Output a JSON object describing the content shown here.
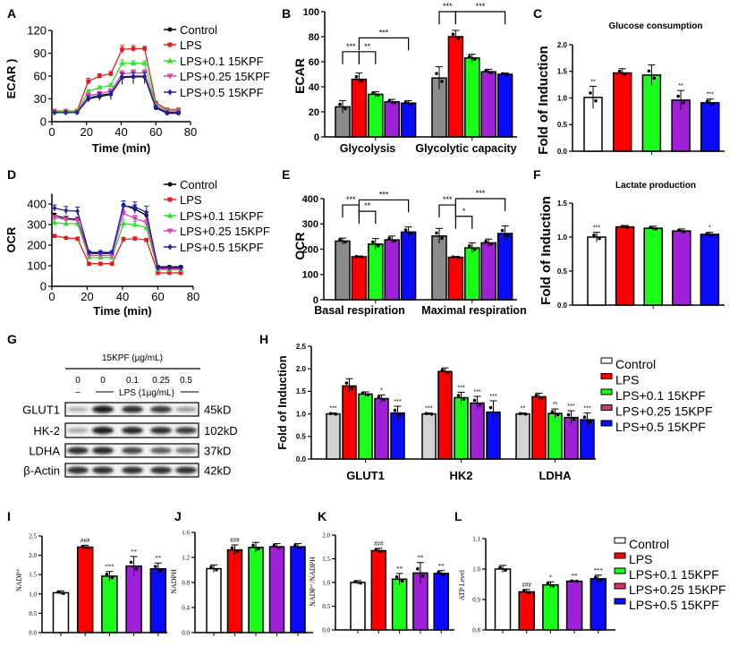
{
  "chart_data": [
    {
      "panel": "A",
      "type": "line",
      "xlabel": "Time (min)",
      "ylabel": "ECAR )",
      "xlim": [
        0,
        80
      ],
      "ylim": [
        0,
        120
      ],
      "xticks": [
        "0",
        "20",
        "40",
        "60",
        "80"
      ],
      "yticks": [
        "0",
        "30",
        "60",
        "90",
        "120"
      ],
      "x": [
        1.5,
        8,
        14.5,
        21,
        27.5,
        34,
        40.5,
        47,
        53.5,
        60,
        66.5,
        73
      ],
      "legend": "right",
      "series": [
        {
          "name": "Control",
          "color": "#000000",
          "marker": "circle",
          "values": [
            12,
            12,
            12,
            30,
            33,
            36,
            58,
            59,
            59,
            18,
            11,
            11
          ],
          "errors": [
            2,
            2,
            2,
            4,
            5,
            7,
            9,
            9,
            9,
            2,
            1,
            1
          ]
        },
        {
          "name": "LPS",
          "color": "#e02020",
          "marker": "square",
          "values": [
            14,
            14,
            14,
            53,
            60,
            63,
            95,
            96,
            96,
            25,
            16,
            16
          ],
          "errors": [
            2,
            2,
            2,
            4,
            3,
            3,
            5,
            4,
            3,
            2,
            1,
            1
          ]
        },
        {
          "name": "LPS+0.1 15KPF",
          "color": "#33e033",
          "marker": "triangle-up",
          "values": [
            13,
            13,
            13,
            40,
            45,
            48,
            77,
            77,
            77,
            22,
            15,
            15
          ],
          "errors": [
            1,
            1,
            1,
            2,
            2,
            2,
            4,
            3,
            3,
            1,
            1,
            1
          ]
        },
        {
          "name": "LPS+0.25 15KPF",
          "color": "#e040b0",
          "marker": "triangle-down",
          "values": [
            12,
            12,
            12,
            34,
            37,
            40,
            63,
            64,
            64,
            20,
            13,
            13
          ],
          "errors": [
            1,
            1,
            1,
            3,
            3,
            3,
            4,
            4,
            4,
            1,
            1,
            1
          ]
        },
        {
          "name": "LPS+0.5 15KPF",
          "color": "#2020b0",
          "marker": "diamond",
          "values": [
            12,
            12,
            12,
            31,
            35,
            37,
            59,
            60,
            60,
            19,
            12,
            12
          ],
          "errors": [
            1,
            1,
            1,
            3,
            3,
            3,
            5,
            5,
            5,
            1,
            1,
            1
          ]
        }
      ]
    },
    {
      "panel": "B",
      "type": "bar",
      "title": "",
      "ylabel": "ECAR",
      "ylim": [
        0,
        100
      ],
      "yticks": [
        "0",
        "20",
        "40",
        "60",
        "80",
        "100"
      ],
      "categories": [
        "Glycolysis",
        "Glycolytic capacity"
      ],
      "bar_colors": [
        "#8c8c8c",
        "#ff0000",
        "#1aff1a",
        "#a020d8",
        "#0a0aff"
      ],
      "values": [
        [
          24,
          46,
          34,
          28,
          27
        ],
        [
          47,
          80,
          63,
          52,
          50
        ]
      ],
      "errors": [
        [
          5,
          5,
          2,
          2,
          2
        ],
        [
          9,
          5,
          3,
          2,
          1
        ]
      ],
      "annotations": [
        [
          "",
          "",
          "",
          "",
          ""
        ],
        [
          "",
          "",
          "",
          "",
          ""
        ]
      ],
      "comparisons": [
        {
          "category": 0,
          "from": 0,
          "to": 1,
          "y": 68,
          "label": "***"
        },
        {
          "category": 0,
          "from": 1,
          "to": 2,
          "y": 68,
          "label": "**"
        },
        {
          "category": 0,
          "from": 1,
          "to": 4,
          "y": 79,
          "label": "***"
        },
        {
          "category": 1,
          "from": 0,
          "to": 1,
          "y": 100,
          "label": "***"
        },
        {
          "category": 1,
          "from": 1,
          "to": 4,
          "y": 100,
          "label": "***"
        }
      ]
    },
    {
      "panel": "C",
      "type": "bar",
      "title": "Glucose consumption",
      "ylabel": "Fold of Induction",
      "ylim": [
        0,
        2.0
      ],
      "yticks": [
        "0.0",
        "0.5",
        "1.0",
        "1.5",
        "2.0"
      ],
      "categories": [
        ""
      ],
      "bar_colors": [
        "#ffffff",
        "#ff0000",
        "#1aff1a",
        "#a020d8",
        "#0a0aff"
      ],
      "values": [
        [
          1.01,
          1.47,
          1.43,
          0.96,
          0.91
        ]
      ],
      "errors": [
        [
          0.21,
          0.08,
          0.19,
          0.18,
          0.07
        ]
      ],
      "annotations": [
        [
          "**",
          "",
          "",
          "**",
          "***"
        ]
      ],
      "comparisons": []
    },
    {
      "panel": "D",
      "type": "line",
      "xlabel": "Time (min)",
      "ylabel": "OCR",
      "xlim": [
        0,
        80
      ],
      "ylim": [
        0,
        450
      ],
      "xticks": [
        "0",
        "20",
        "40",
        "60",
        "80"
      ],
      "yticks": [
        "0",
        "100",
        "200",
        "300",
        "400"
      ],
      "x": [
        1.5,
        8,
        14.5,
        21,
        27.5,
        34,
        40.5,
        47,
        53.5,
        60,
        66.5,
        73
      ],
      "legend": "right",
      "series": [
        {
          "name": "Control",
          "color": "#000000",
          "marker": "circle",
          "values": [
            345,
            330,
            325,
            160,
            160,
            160,
            395,
            375,
            345,
            95,
            95,
            95
          ],
          "errors": [
            10,
            10,
            10,
            8,
            8,
            8,
            20,
            20,
            15,
            4,
            4,
            4
          ]
        },
        {
          "name": "LPS",
          "color": "#e02020",
          "marker": "square",
          "values": [
            245,
            235,
            232,
            110,
            110,
            110,
            228,
            232,
            225,
            65,
            65,
            65
          ],
          "errors": [
            5,
            5,
            5,
            3,
            3,
            3,
            10,
            8,
            8,
            3,
            3,
            3
          ]
        },
        {
          "name": "LPS+0.1 15KPF",
          "color": "#33e033",
          "marker": "triangle-up",
          "values": [
            310,
            305,
            305,
            140,
            140,
            140,
            305,
            300,
            285,
            80,
            80,
            80
          ],
          "errors": [
            15,
            15,
            15,
            8,
            8,
            8,
            20,
            15,
            15,
            4,
            4,
            4
          ]
        },
        {
          "name": "LPS+0.25 15KPF",
          "color": "#e040b0",
          "marker": "triangle-down",
          "values": [
            335,
            325,
            320,
            150,
            150,
            150,
            355,
            330,
            310,
            85,
            85,
            85
          ],
          "errors": [
            10,
            10,
            10,
            8,
            8,
            8,
            15,
            15,
            15,
            4,
            4,
            4
          ]
        },
        {
          "name": "LPS+0.5 15KPF",
          "color": "#2020b0",
          "marker": "diamond",
          "values": [
            380,
            368,
            365,
            165,
            165,
            165,
            390,
            385,
            360,
            90,
            90,
            90
          ],
          "errors": [
            15,
            20,
            20,
            8,
            8,
            8,
            25,
            25,
            30,
            4,
            4,
            4
          ]
        }
      ]
    },
    {
      "panel": "E",
      "type": "bar",
      "title": "",
      "ylabel": "OCR",
      "ylim": [
        0,
        400
      ],
      "yticks": [
        "0",
        "100",
        "200",
        "300",
        "400"
      ],
      "categories": [
        "Basal respiration",
        "Maximal respiration"
      ],
      "bar_colors": [
        "#8c8c8c",
        "#ff0000",
        "#1aff1a",
        "#a020d8",
        "#0a0aff"
      ],
      "values": [
        [
          232,
          170,
          220,
          237,
          268
        ],
        [
          252,
          168,
          205,
          225,
          262
        ]
      ],
      "errors": [
        [
          12,
          3,
          22,
          15,
          20
        ],
        [
          30,
          3,
          20,
          15,
          30
        ]
      ],
      "annotations": [
        [
          "",
          "",
          "",
          "",
          ""
        ],
        [
          "",
          "",
          "",
          "",
          ""
        ]
      ],
      "comparisons": [
        {
          "category": 0,
          "from": 0,
          "to": 1,
          "y": 375,
          "label": "***"
        },
        {
          "category": 0,
          "from": 1,
          "to": 2,
          "y": 350,
          "label": "**"
        },
        {
          "category": 0,
          "from": 1,
          "to": 4,
          "y": 395,
          "label": "***"
        },
        {
          "category": 1,
          "from": 0,
          "to": 1,
          "y": 375,
          "label": "***"
        },
        {
          "category": 1,
          "from": 1,
          "to": 2,
          "y": 330,
          "label": "*"
        },
        {
          "category": 1,
          "from": 1,
          "to": 4,
          "y": 400,
          "label": "***"
        }
      ]
    },
    {
      "panel": "F",
      "type": "bar",
      "title": "Lactate production",
      "ylabel": "Fold of Induction",
      "ylim": [
        0,
        1.5
      ],
      "yticks": [
        "0.0",
        "0.5",
        "1.0",
        "1.5"
      ],
      "categories": [
        ""
      ],
      "bar_colors": [
        "#ffffff",
        "#ff0000",
        "#1aff1a",
        "#a020d8",
        "#0a0aff"
      ],
      "values": [
        [
          1.0,
          1.15,
          1.13,
          1.09,
          1.04
        ]
      ],
      "errors": [
        [
          0.07,
          0.02,
          0.03,
          0.03,
          0.03
        ]
      ],
      "annotations": [
        [
          "***",
          "",
          "",
          "",
          "*"
        ]
      ],
      "comparisons": []
    },
    {
      "panel": "H",
      "type": "bar",
      "title": "",
      "ylabel": "Fold of Induction",
      "ylim": [
        0,
        2.5
      ],
      "yticks": [
        "0.0",
        "0.5",
        "1.0",
        "1.5",
        "2.0",
        "2.5"
      ],
      "categories": [
        "GLUT1",
        "HK2",
        "LDHA"
      ],
      "bar_colors": [
        "#d3d3d3",
        "#ff0000",
        "#1aff1a",
        "#a020d8",
        "#0a0aff"
      ],
      "values": [
        [
          1.0,
          1.62,
          1.44,
          1.34,
          1.02
        ],
        [
          1.0,
          1.94,
          1.36,
          1.24,
          1.04
        ],
        [
          1.0,
          1.38,
          1.01,
          0.92,
          0.87
        ]
      ],
      "errors": [
        [
          0.02,
          0.16,
          0.05,
          0.08,
          0.15
        ],
        [
          0.02,
          0.08,
          0.12,
          0.15,
          0.25
        ],
        [
          0.02,
          0.08,
          0.1,
          0.15,
          0.15
        ]
      ],
      "annotations": [
        [
          "***",
          "",
          "",
          "*",
          "***"
        ],
        [
          "***",
          "",
          "***",
          "***",
          "***"
        ],
        [
          "**",
          "",
          "**",
          "***",
          "***"
        ]
      ],
      "comparisons": [],
      "legend": {
        "entries": [
          "Control",
          "LPS",
          "LPS+0.1 15KPF",
          "LPS+0.25 15KPF",
          "LPS+0.5 15KPF"
        ],
        "colors": [
          "#ffffff",
          "#ff0000",
          "#1aff1a",
          "#e0306e",
          "#0a0aff"
        ]
      }
    },
    {
      "panel": "I",
      "type": "bar",
      "title": "",
      "ylabel": "NADP⁺",
      "ylim": [
        0,
        2.5
      ],
      "yticks": [
        "0.0",
        "0.5",
        "1.0",
        "1.5",
        "2.0",
        "2.5"
      ],
      "categories": [
        ""
      ],
      "bar_colors": [
        "#ffffff",
        "#ff0000",
        "#1aff1a",
        "#a020d8",
        "#0a0aff"
      ],
      "values": [
        [
          1.03,
          2.21,
          1.46,
          1.72,
          1.65
        ]
      ],
      "errors": [
        [
          0.05,
          0.05,
          0.12,
          0.25,
          0.15
        ]
      ],
      "annotations": [
        [
          "",
          "###",
          "***",
          "**",
          "**"
        ]
      ],
      "comparisons": []
    },
    {
      "panel": "J",
      "type": "bar",
      "title": "",
      "ylabel": "NADPH",
      "ylim": [
        0,
        1.6
      ],
      "yticks": [
        "0.0",
        "0.4",
        "0.8",
        "1.2",
        "1.6"
      ],
      "categories": [
        ""
      ],
      "bar_colors": [
        "#ffffff",
        "#ff0000",
        "#1aff1a",
        "#a020d8",
        "#0a0aff"
      ],
      "values": [
        [
          1.02,
          1.32,
          1.36,
          1.37,
          1.37
        ]
      ],
      "errors": [
        [
          0.06,
          0.08,
          0.08,
          0.05,
          0.05
        ]
      ],
      "annotations": [
        [
          "",
          "###",
          "",
          "",
          ""
        ]
      ],
      "comparisons": []
    },
    {
      "panel": "K",
      "type": "bar",
      "title": "",
      "ylabel": "NADP⁺/NADPH",
      "ylim": [
        0,
        2.0
      ],
      "yticks": [
        "0.0",
        "0.5",
        "1.0",
        "1.5",
        "2.0"
      ],
      "categories": [
        ""
      ],
      "bar_colors": [
        "#ffffff",
        "#ff0000",
        "#1aff1a",
        "#a020d8",
        "#0a0aff"
      ],
      "values": [
        [
          1.0,
          1.67,
          1.07,
          1.2,
          1.19
        ]
      ],
      "errors": [
        [
          0.04,
          0.05,
          0.12,
          0.22,
          0.06
        ]
      ],
      "annotations": [
        [
          "",
          "###",
          "**",
          "**",
          "**"
        ]
      ],
      "comparisons": []
    },
    {
      "panel": "L",
      "type": "bar",
      "title": "",
      "ylabel": "ATP Level",
      "ylim": [
        0.8,
        1.1
      ],
      "yticks": [
        "0.8",
        "0.9",
        "1.0",
        "1.1"
      ],
      "categories": [
        ""
      ],
      "bar_colors": [
        "#ffffff",
        "#ff0000",
        "#1aff1a",
        "#a020d8",
        "#0a0aff"
      ],
      "values": [
        [
          1.0,
          0.925,
          0.948,
          0.96,
          0.968
        ]
      ],
      "errors": [
        [
          0.012,
          0.008,
          0.01,
          0.002,
          0.012
        ]
      ],
      "annotations": [
        [
          "",
          "###",
          "*",
          "**",
          "***"
        ]
      ],
      "comparisons": [],
      "legend": {
        "entries": [
          "Control",
          "LPS",
          "LPS+0.1 15KPF",
          "LPS+0.25 15KPF",
          "LPS+0.5 15KPF"
        ],
        "colors": [
          "#ffffff",
          "#ff0000",
          "#1aff1a",
          "#e0306e",
          "#0a0aff"
        ]
      }
    }
  ],
  "western_blot": {
    "panel": "G",
    "treatment_label": "15KPF (µg/mL)",
    "doses": [
      "0",
      "0",
      "0.1",
      "0.25",
      "0.5"
    ],
    "no_lps_mark": "–",
    "lps_label": "LPS (1µg/mL)",
    "rows": [
      {
        "protein": "GLUT1",
        "size": "45kD",
        "band_intensity": [
          0.25,
          0.95,
          0.85,
          0.8,
          0.35
        ]
      },
      {
        "protein": "HK-2",
        "size": "102kD",
        "band_intensity": [
          0.3,
          0.95,
          0.9,
          0.85,
          0.8
        ]
      },
      {
        "protein": "LDHA",
        "size": "37kD",
        "band_intensity": [
          0.85,
          0.9,
          0.75,
          0.65,
          0.55
        ]
      },
      {
        "protein": "β-Actin",
        "size": "42kD",
        "band_intensity": [
          0.85,
          0.85,
          0.85,
          0.85,
          0.85
        ]
      }
    ]
  }
}
